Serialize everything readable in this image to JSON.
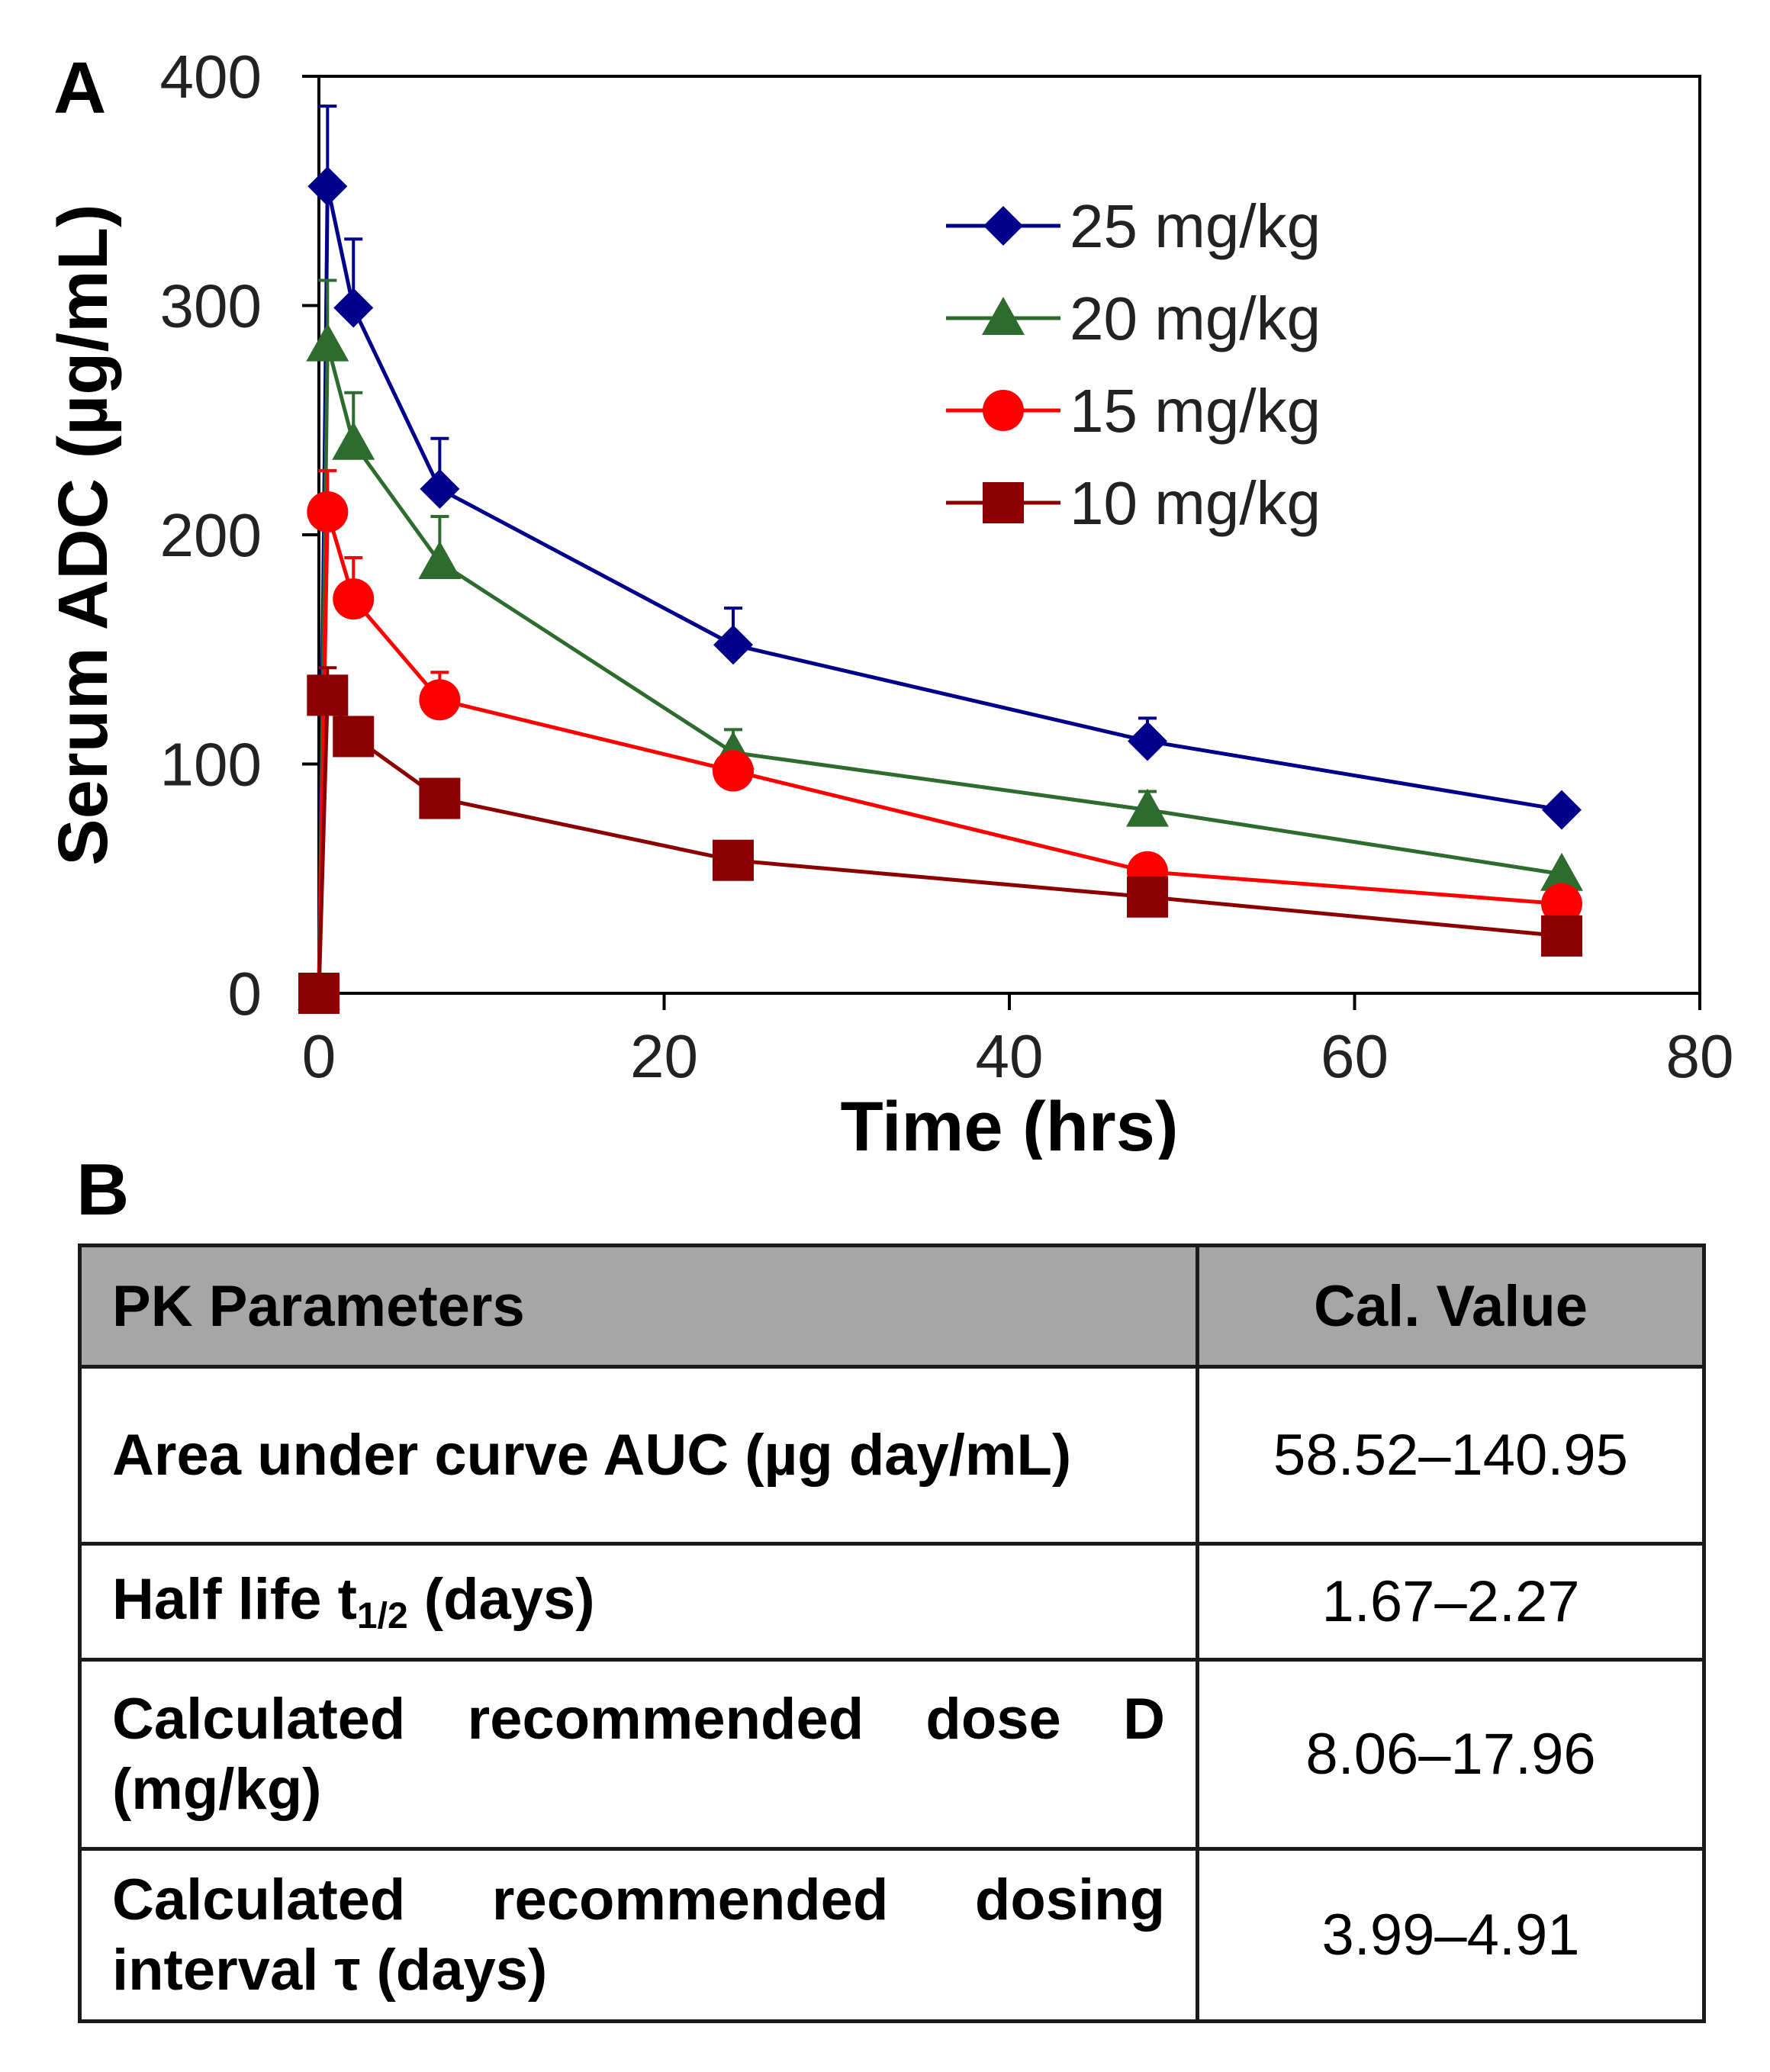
{
  "panel_a": {
    "label": "A"
  },
  "panel_b": {
    "label": "B"
  },
  "chart_data": {
    "type": "line",
    "xlabel": "Time (hrs)",
    "ylabel": "Serum ADC (µg/mL)",
    "xlim": [
      0,
      80
    ],
    "ylim": [
      0,
      400
    ],
    "x_ticks": [
      0,
      20,
      40,
      60,
      80
    ],
    "y_ticks": [
      0,
      100,
      200,
      300,
      400
    ],
    "grid": false,
    "legend_position": "top-right",
    "x": [
      0,
      0.5,
      2,
      7,
      24,
      48,
      72
    ],
    "series": [
      {
        "name": "25 mg/kg",
        "marker": "diamond",
        "color": "#00008b",
        "values": [
          0,
          352,
          299,
          220,
          152,
          110,
          80
        ],
        "error": [
          0,
          35,
          30,
          22,
          16,
          10,
          0
        ]
      },
      {
        "name": "20 mg/kg",
        "marker": "triangle",
        "color": "#2e6b2e",
        "values": [
          0,
          283,
          240,
          188,
          105,
          80,
          52
        ],
        "error": [
          0,
          28,
          22,
          20,
          10,
          8,
          0
        ]
      },
      {
        "name": "15 mg/kg",
        "marker": "circle",
        "color": "#ff0000",
        "values": [
          0,
          210,
          172,
          128,
          97,
          53,
          39
        ],
        "error": [
          0,
          18,
          18,
          12,
          0,
          0,
          0
        ]
      },
      {
        "name": "10 mg/kg",
        "marker": "square",
        "color": "#8b0000",
        "values": [
          0,
          130,
          112,
          85,
          58,
          42,
          25
        ],
        "error": [
          0,
          12,
          0,
          0,
          0,
          0,
          0
        ]
      }
    ]
  },
  "table": {
    "header": {
      "param": "PK Parameters",
      "value": "Cal. Value"
    },
    "rows": [
      {
        "param": "Area under curve AUC (µg day/mL)",
        "value": "58.52–140.95"
      },
      {
        "param_pre": "Half life t",
        "param_sub": "1/2",
        "param_post": " (days)",
        "value": "1.67–2.27"
      },
      {
        "param": "Calculated recommended dose D (mg/kg)",
        "value": "8.06–17.96"
      },
      {
        "param": "Calculated recommended dosing interval τ (days)",
        "value": "3.99–4.91"
      }
    ]
  }
}
